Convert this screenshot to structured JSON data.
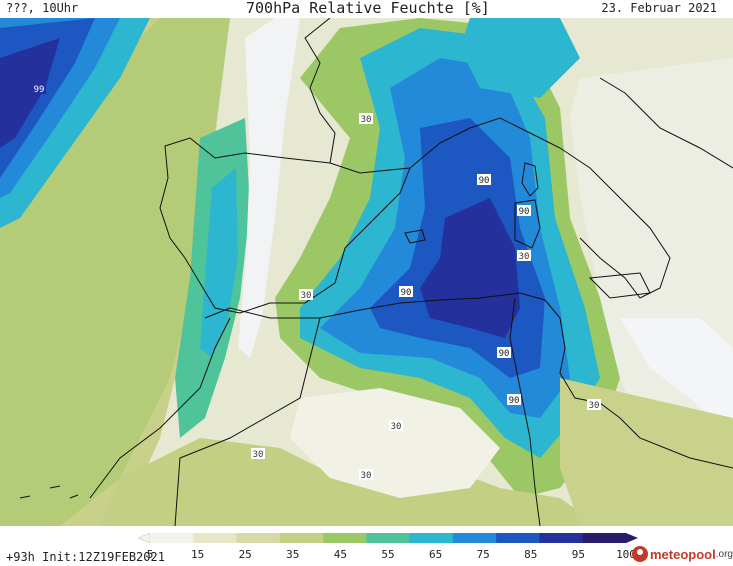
{
  "header": {
    "left_text": "???, 10Uhr",
    "title": "700hPa Relative Feuchte [%]",
    "date": "23. Februar 2021"
  },
  "footer": {
    "init_text": "+93h Init:12Z19FEB2021",
    "brand_name": "meteopool",
    "brand_suffix": ".org"
  },
  "legend": {
    "ticks": [
      "5",
      "15",
      "25",
      "35",
      "45",
      "55",
      "65",
      "75",
      "85",
      "95",
      "100"
    ],
    "colors": [
      "#f4f2ec",
      "#e8e6c8",
      "#d8d9a6",
      "#c3cf82",
      "#9bc865",
      "#4fc39a",
      "#2db6cf",
      "#228ad8",
      "#1d57c2",
      "#24309b",
      "#2a1a6b"
    ]
  },
  "contour_labels": [
    "99",
    "30",
    "90",
    "90",
    "30",
    "90",
    "30",
    "90",
    "90",
    "30",
    "30",
    "30",
    "30"
  ],
  "colors": {
    "sea_dry": "#e8ecf2",
    "land_moist": "#c9d28a",
    "coastline": "#111111"
  }
}
